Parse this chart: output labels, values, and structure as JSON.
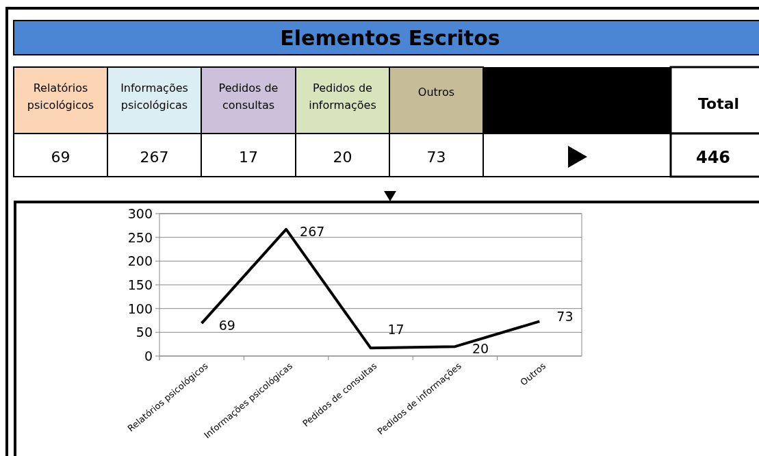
{
  "chart_data": [
    {
      "type": "other",
      "title": "Elementos Escritos",
      "categories": [
        "Relatórios psicológicos",
        "Informações psicológicas",
        "Pedidos de consultas",
        "Pedidos de informações",
        "Outros"
      ],
      "values": [
        69,
        267,
        17,
        20,
        73
      ],
      "value_labels": [
        "69",
        "267",
        "17",
        "20",
        "73"
      ],
      "annotations": [
        "Total"
      ],
      "totals": [
        "446"
      ]
    },
    {
      "type": "line",
      "categories": [
        "Relatórios psicológicos",
        "Informações psicológicas",
        "Pedidos de consultas",
        "Pedidos de informações",
        "Outros"
      ],
      "values": [
        69,
        267,
        17,
        20,
        73
      ],
      "color": "#000000",
      "ylim": [
        0,
        300
      ],
      "yticks": [
        0,
        50,
        100,
        150,
        200,
        250,
        300
      ],
      "grid": "y",
      "data_labels": true,
      "marker": "none",
      "line_style": "solid"
    }
  ]
}
